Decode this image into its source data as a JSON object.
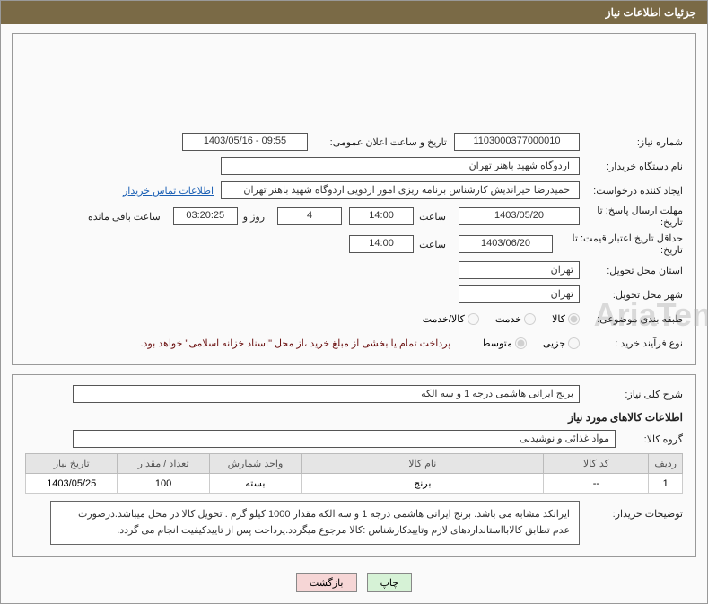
{
  "header": {
    "title": "جزئیات اطلاعات نیاز"
  },
  "info": {
    "need_number": {
      "label": "شماره نیاز:",
      "value": "1103000377000010"
    },
    "announce_date": {
      "label": "تاریخ و ساعت اعلان عمومی:",
      "value": "1403/05/16 - 09:55"
    },
    "buyer_org": {
      "label": "نام دستگاه خریدار:",
      "value": "اردوگاه شهید باهنر تهران"
    },
    "creator": {
      "label": "ایجاد کننده درخواست:",
      "value": "حمیدرضا خیراندیش کارشناس برنامه ریزی امور اردویی اردوگاه شهید باهنر تهران",
      "contact_link": "اطلاعات تماس خریدار"
    },
    "response_deadline": {
      "label": "مهلت ارسال پاسخ: تا تاریخ:",
      "date": "1403/05/20",
      "time_label": "ساعت",
      "time": "14:00",
      "days": "4",
      "days_suffix": "روز و",
      "countdown": "03:20:25",
      "remaining_label": "ساعت باقی مانده"
    },
    "price_validity": {
      "label": "حداقل تاریخ اعتبار قیمت: تا تاریخ:",
      "date": "1403/06/20",
      "time_label": "ساعت",
      "time": "14:00"
    },
    "province": {
      "label": "استان محل تحویل:",
      "value": "تهران"
    },
    "city": {
      "label": "شهر محل تحویل:",
      "value": "تهران"
    },
    "category": {
      "label": "طبقه بندی موضوعی:",
      "options": [
        {
          "label": "کالا",
          "checked": true
        },
        {
          "label": "خدمت",
          "checked": false
        },
        {
          "label": "کالا/خدمت",
          "checked": false
        }
      ]
    },
    "purchase_type": {
      "label": "نوع فرآیند خرید :",
      "options": [
        {
          "label": "جزیی",
          "checked": false
        },
        {
          "label": "متوسط",
          "checked": true
        }
      ],
      "note": "پرداخت تمام یا بخشی از مبلغ خرید ،از محل \"اسناد خزانه اسلامی\" خواهد بود."
    }
  },
  "need_desc": {
    "label": "شرح کلی نیاز:",
    "value": "برنج ایرانی هاشمی درجه 1 و سه الکه"
  },
  "goods_section_title": "اطلاعات کالاهای مورد نیاز",
  "goods_group": {
    "label": "گروه کالا:",
    "value": "مواد غذائی و نوشیدنی"
  },
  "table": {
    "columns": [
      "ردیف",
      "کد کالا",
      "نام کالا",
      "واحد شمارش",
      "تعداد / مقدار",
      "تاریخ نیاز"
    ],
    "rows": [
      [
        "1",
        "--",
        "برنج",
        "بسته",
        "100",
        "1403/05/25"
      ]
    ]
  },
  "buyer_notes": {
    "label": "توضیحات خریدار:",
    "text": "ایرانکد مشابه می باشد. برنج ایرانی هاشمی درجه 1 و سه الکه مقدار 1000 کیلو گرم . تحویل کالا در محل میباشد.درصورت عدم تطابق کالابااستانداردهای لازم وتاییدکارشناس :کالا مرجوع میگردد.پرداخت پس از تاییدکیفیت انجام می گردد."
  },
  "buttons": {
    "print": "چاپ",
    "back": "بازگشت"
  },
  "watermark": "AriaTender.net"
}
